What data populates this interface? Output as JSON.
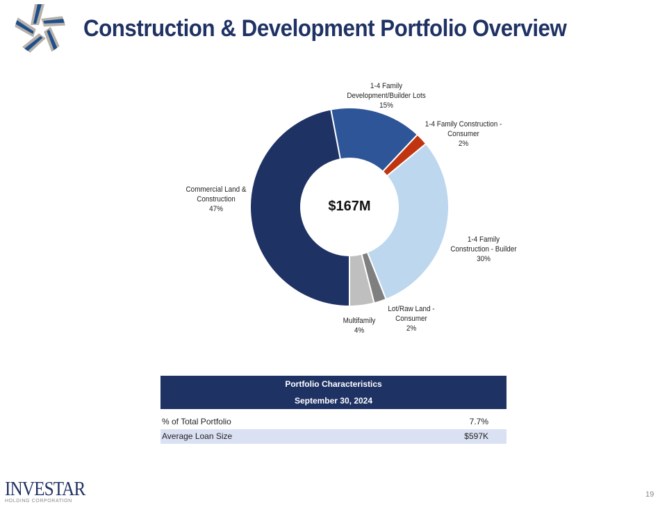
{
  "header": {
    "title": "Construction & Development Portfolio Overview"
  },
  "chart_data": {
    "type": "pie",
    "style": "donut",
    "center_label": "$167M",
    "slices": [
      {
        "label_lines": [
          "1-4 Family",
          "Development/Builder  Lots",
          "15%"
        ],
        "label": "1-4 Family Development/Builder Lots",
        "value": 15,
        "color": "#2e5597"
      },
      {
        "label_lines": [
          "1-4 Family Construction  -",
          "Consumer",
          "2%"
        ],
        "label": "1-4 Family Construction - Consumer",
        "value": 2,
        "color": "#c0350f"
      },
      {
        "label_lines": [
          "1-4 Family",
          "Construction  - Builder",
          "30%"
        ],
        "label": "1-4 Family Construction - Builder",
        "value": 30,
        "color": "#bdd7ee"
      },
      {
        "label_lines": [
          "Lot/Raw Land -",
          "Consumer",
          "2%"
        ],
        "label": "Lot/Raw Land - Consumer",
        "value": 2,
        "color": "#7f7f7f"
      },
      {
        "label_lines": [
          "Multifamily",
          "4%"
        ],
        "label": "Multifamily",
        "value": 4,
        "color": "#bfbfbf"
      },
      {
        "label_lines": [
          "Commercial Land  &",
          "Construction",
          "47%"
        ],
        "label": "Commercial Land & Construction",
        "value": 47,
        "color": "#1f3264"
      }
    ]
  },
  "table": {
    "title": "Portfolio Characteristics",
    "date": "September 30, 2024",
    "rows": [
      {
        "label": "% of Total Portfolio",
        "value": "7.7%"
      },
      {
        "label": "Average Loan Size",
        "value": "$597K"
      }
    ]
  },
  "footer": {
    "brand": "INVESTAR",
    "brand_sub": "HOLDING CORPORATION",
    "page_number": "19"
  },
  "colors": {
    "brand_navy": "#1f3264",
    "table_alt_row": "#dae1f3"
  }
}
